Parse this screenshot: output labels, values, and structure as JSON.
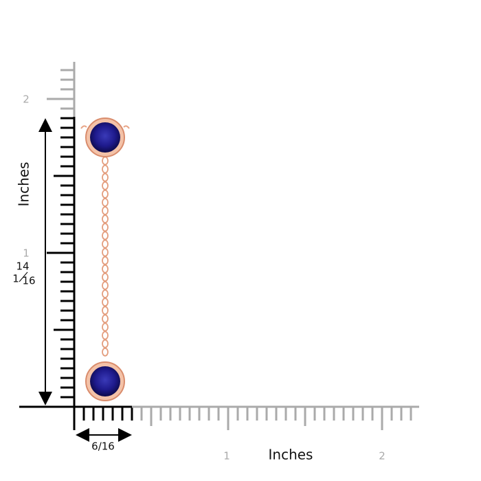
{
  "vertical_ruler": {
    "ticks": [
      "2",
      "1"
    ],
    "unit": "Inches",
    "measure": {
      "whole": "1",
      "numerator": "14",
      "denominator": "16"
    }
  },
  "horizontal_ruler": {
    "ticks": [
      "1",
      "2"
    ],
    "unit": "Inches",
    "measure": "6/16"
  }
}
